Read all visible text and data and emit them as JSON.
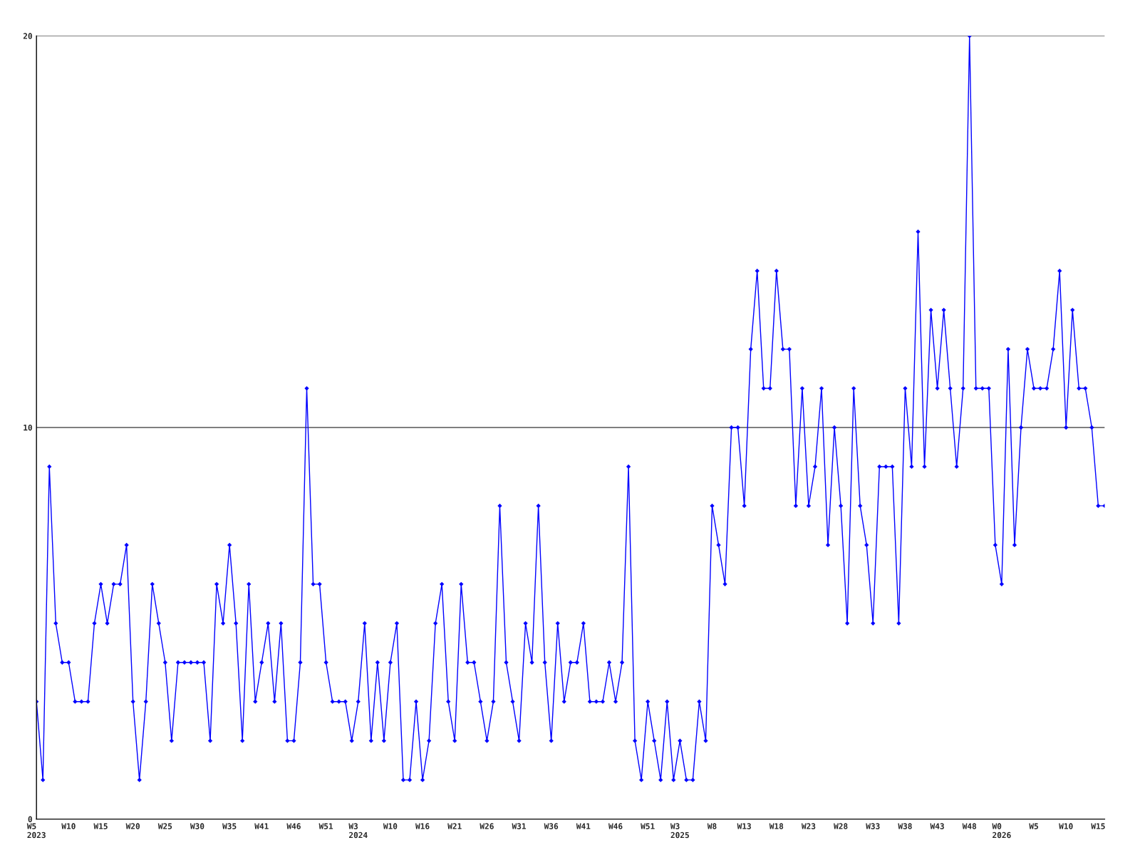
{
  "chart_data": {
    "type": "line",
    "categories": [
      "W5\n2023",
      null,
      null,
      null,
      null,
      "W10",
      null,
      null,
      null,
      null,
      "W15",
      null,
      null,
      null,
      null,
      "W20",
      null,
      null,
      null,
      null,
      "W25",
      null,
      null,
      null,
      null,
      "W30",
      null,
      null,
      null,
      null,
      "W35",
      null,
      null,
      null,
      null,
      "W41",
      null,
      null,
      null,
      null,
      "W46",
      null,
      null,
      null,
      null,
      "W51",
      null,
      null,
      null,
      null,
      "W3\n2024",
      null,
      null,
      null,
      null,
      "W10",
      null,
      null,
      null,
      null,
      "W16",
      null,
      null,
      null,
      null,
      "W21",
      null,
      null,
      null,
      null,
      "W26",
      null,
      null,
      null,
      null,
      "W31",
      null,
      null,
      null,
      null,
      "W36",
      null,
      null,
      null,
      null,
      "W41",
      null,
      null,
      null,
      null,
      "W46",
      null,
      null,
      null,
      null,
      "W51",
      null,
      null,
      null,
      null,
      "W3\n2025",
      null,
      null,
      null,
      null,
      "W8",
      null,
      null,
      null,
      null,
      "W13",
      null,
      null,
      null,
      null,
      "W18",
      null,
      null,
      null,
      null,
      "W23",
      null,
      null,
      null,
      null,
      "W28",
      null,
      null,
      null,
      null,
      "W33",
      null,
      null,
      null,
      null,
      "W38",
      null,
      null,
      null,
      null,
      "W43",
      null,
      null,
      null,
      null,
      "W48",
      null,
      null,
      null,
      null,
      "W0\n2026",
      null,
      null,
      null,
      null,
      "W5",
      null,
      null,
      null,
      null,
      "W10",
      null,
      null,
      null,
      null,
      "W15",
      null
    ],
    "series": [
      {
        "color": "#0000ff",
        "values": [
          3,
          1,
          9,
          5,
          4,
          4,
          3,
          3,
          3,
          5,
          6,
          5,
          6,
          6,
          7,
          3,
          1,
          3,
          6,
          5,
          4,
          2,
          4,
          4,
          4,
          4,
          4,
          2,
          6,
          5,
          7,
          5,
          2,
          6,
          3,
          4,
          5,
          3,
          5,
          2,
          2,
          4,
          11,
          6,
          6,
          4,
          3,
          3,
          3,
          2,
          3,
          5,
          2,
          4,
          2,
          4,
          5,
          1,
          1,
          3,
          1,
          2,
          5,
          6,
          3,
          2,
          6,
          4,
          4,
          3,
          2,
          3,
          8,
          4,
          3,
          2,
          5,
          4,
          8,
          4,
          2,
          5,
          3,
          4,
          4,
          5,
          3,
          3,
          3,
          4,
          3,
          4,
          9,
          2,
          1,
          3,
          2,
          1,
          3,
          1,
          2,
          1,
          1,
          3,
          2,
          8,
          7,
          6,
          10,
          10,
          8,
          12,
          14,
          11,
          11,
          14,
          12,
          12,
          8,
          11,
          8,
          9,
          11,
          7,
          10,
          8,
          5,
          11,
          8,
          7,
          5,
          9,
          9,
          9,
          5,
          11,
          9,
          15,
          9,
          13,
          11,
          13,
          11,
          9,
          11,
          20,
          11,
          11,
          11,
          7,
          6,
          12,
          7,
          10,
          12,
          11,
          11,
          11,
          12,
          14,
          10,
          13,
          11,
          11,
          10,
          8,
          8
        ]
      }
    ],
    "ylim": [
      0,
      20
    ],
    "yticks": [
      0,
      10,
      20
    ],
    "grid": "y",
    "marker": "diamond",
    "line_style": "solid"
  }
}
